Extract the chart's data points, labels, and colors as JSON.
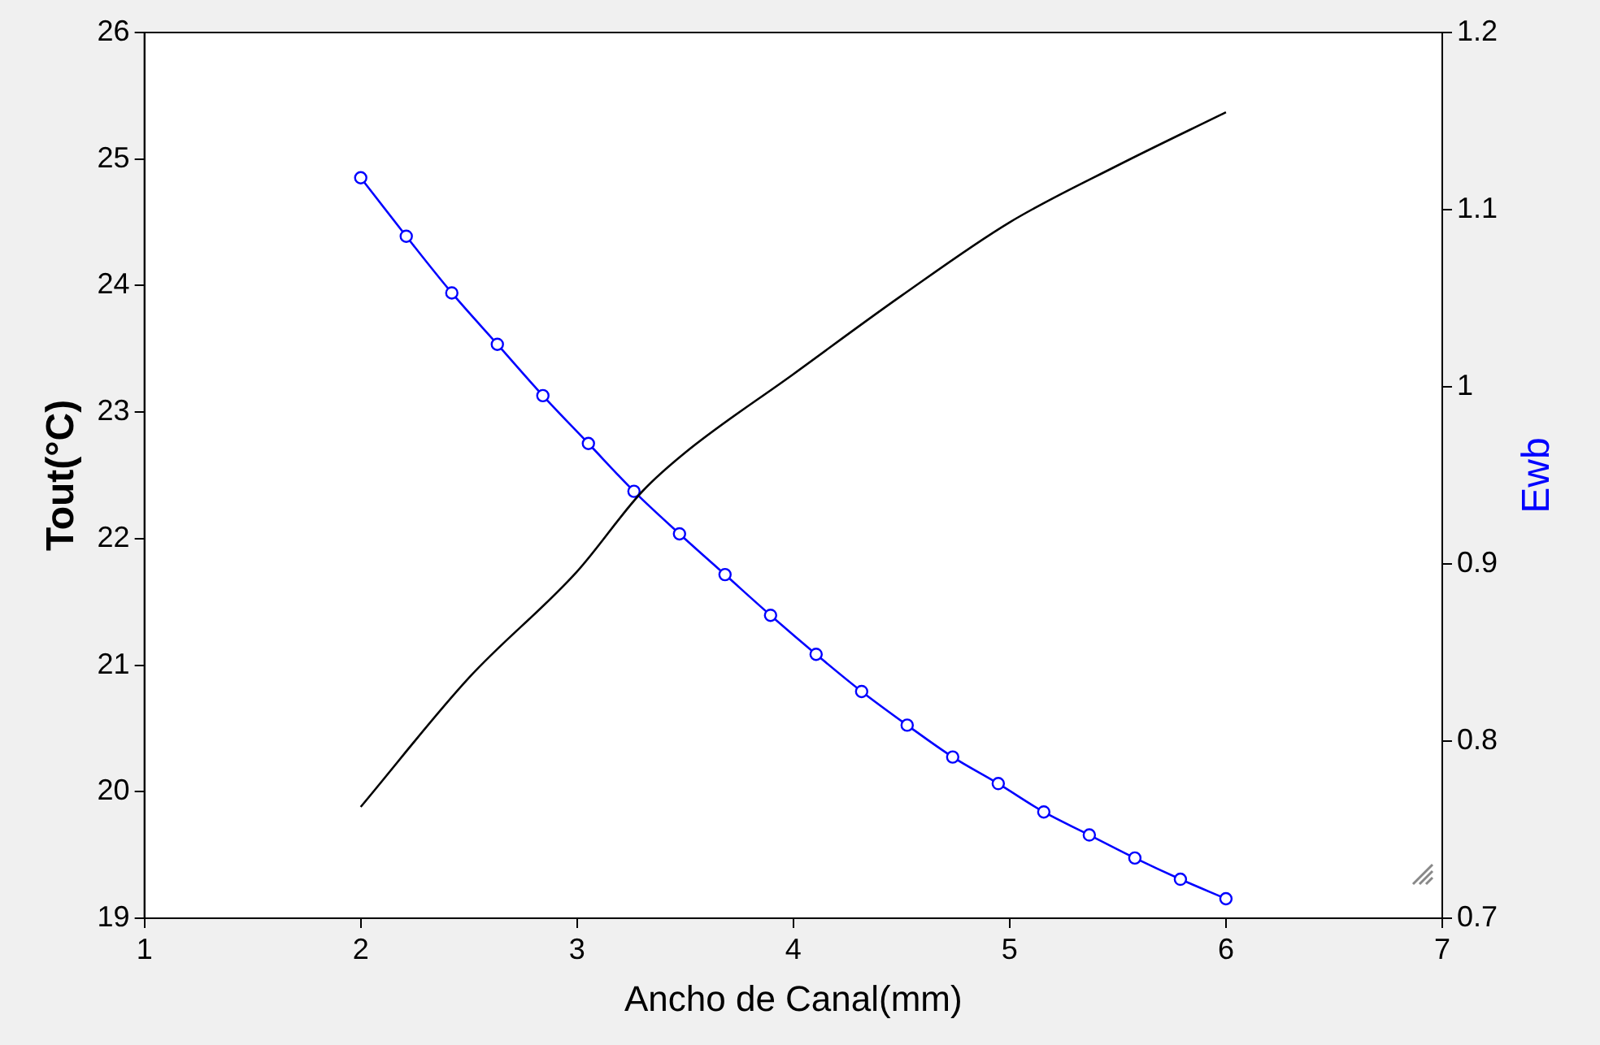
{
  "chart_data": {
    "type": "line",
    "xlabel": "Ancho de Canal(mm)",
    "ylabel": "Tout(°C)",
    "y2label": "Ewb",
    "xlim": [
      1,
      7
    ],
    "xticks": [
      1,
      2,
      3,
      4,
      5,
      6,
      7
    ],
    "ylim": [
      19,
      26
    ],
    "yticks": [
      19,
      20,
      21,
      22,
      23,
      24,
      25,
      26
    ],
    "y2lim": [
      0.7,
      1.2
    ],
    "y2ticks": [
      0.7,
      0.8,
      0.9,
      1,
      1.1,
      1.2
    ],
    "grid": false,
    "legend": false,
    "line_style": "solid",
    "series": [
      {
        "color": "#000000",
        "marker": "none",
        "x": [
          2,
          2.5,
          3,
          3.3,
          3.5,
          4,
          4.5,
          5,
          5.5,
          6
        ],
        "values": [
          19.88,
          20.9,
          21.74,
          22.37,
          22.68,
          23.3,
          23.92,
          24.5,
          24.95,
          25.37
        ]
      },
      {
        "color": "#0000ff",
        "axis": "y2",
        "marker": "circle",
        "x": [
          2,
          2.2105,
          2.4211,
          2.6316,
          2.8421,
          3.0526,
          3.2632,
          3.4737,
          3.6842,
          3.8947,
          4.1053,
          4.3158,
          4.5263,
          4.7368,
          4.9474,
          5.1579,
          5.3684,
          5.5789,
          5.7895,
          6
        ],
        "values": [
          1.118,
          1.085,
          1.053,
          1.024,
          0.995,
          0.968,
          0.941,
          0.917,
          0.894,
          0.871,
          0.849,
          0.828,
          0.809,
          0.791,
          0.776,
          0.76,
          0.747,
          0.734,
          0.722,
          0.711
        ]
      }
    ]
  }
}
